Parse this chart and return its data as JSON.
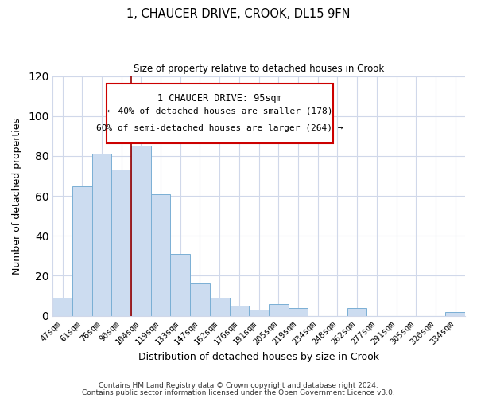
{
  "title": "1, CHAUCER DRIVE, CROOK, DL15 9FN",
  "subtitle": "Size of property relative to detached houses in Crook",
  "xlabel": "Distribution of detached houses by size in Crook",
  "ylabel": "Number of detached properties",
  "bar_color": "#ccdcf0",
  "bar_edge_color": "#7aafd4",
  "categories": [
    "47sqm",
    "61sqm",
    "76sqm",
    "90sqm",
    "104sqm",
    "119sqm",
    "133sqm",
    "147sqm",
    "162sqm",
    "176sqm",
    "191sqm",
    "205sqm",
    "219sqm",
    "234sqm",
    "248sqm",
    "262sqm",
    "277sqm",
    "291sqm",
    "305sqm",
    "320sqm",
    "334sqm"
  ],
  "values": [
    9,
    65,
    81,
    73,
    85,
    61,
    31,
    16,
    9,
    5,
    3,
    6,
    4,
    0,
    0,
    4,
    0,
    0,
    0,
    0,
    2
  ],
  "ylim": [
    0,
    120
  ],
  "yticks": [
    0,
    20,
    40,
    60,
    80,
    100,
    120
  ],
  "annotation_title": "1 CHAUCER DRIVE: 95sqm",
  "annotation_line1": "← 40% of detached houses are smaller (178)",
  "annotation_line2": "60% of semi-detached houses are larger (264) →",
  "vline_x": 3.5,
  "background_color": "#ffffff",
  "grid_color": "#d0d8ea",
  "vline_color": "#990000",
  "annotation_edge_color": "#cc0000",
  "footer1": "Contains HM Land Registry data © Crown copyright and database right 2024.",
  "footer2": "Contains public sector information licensed under the Open Government Licence v3.0."
}
